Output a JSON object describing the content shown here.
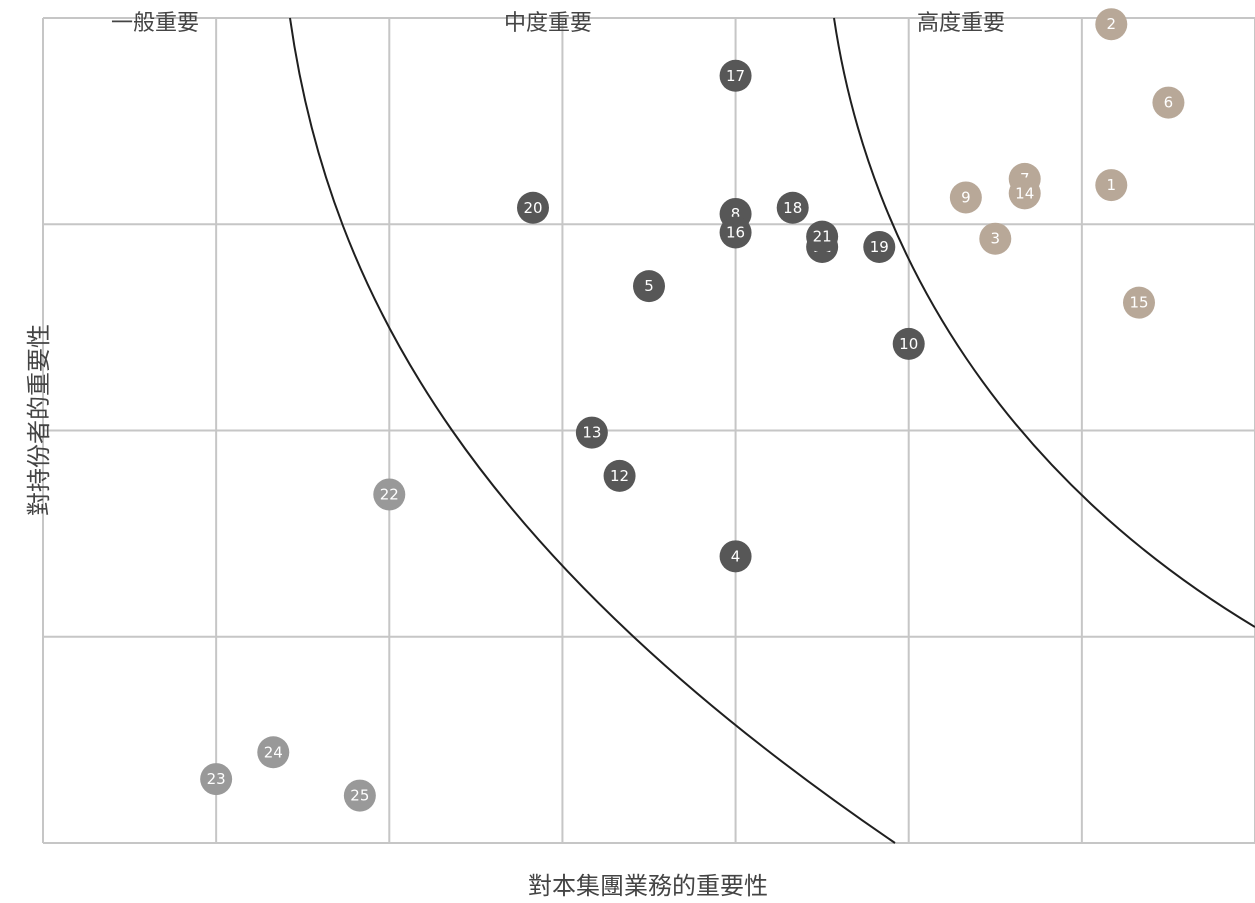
{
  "chart_data": {
    "type": "scatter",
    "title": "",
    "xlabel": "對本集團業務的重要性",
    "ylabel": "對持份者的重要性",
    "xlim": [
      0,
      7
    ],
    "ylim": [
      0,
      4
    ],
    "grid": true,
    "zones": [
      {
        "label": "一般重要",
        "color": "#999999"
      },
      {
        "label": "中度重要",
        "color": "#575757"
      },
      {
        "label": "高度重要",
        "color": "#b8a898"
      }
    ],
    "points": [
      {
        "id": "1",
        "x": 6.17,
        "y": 3.19,
        "zone": 2
      },
      {
        "id": "2",
        "x": 6.17,
        "y": 3.97,
        "zone": 2
      },
      {
        "id": "3",
        "x": 5.5,
        "y": 2.93,
        "zone": 2
      },
      {
        "id": "4",
        "x": 4.0,
        "y": 1.39,
        "zone": 1
      },
      {
        "id": "5",
        "x": 3.5,
        "y": 2.7,
        "zone": 1
      },
      {
        "id": "6",
        "x": 6.5,
        "y": 3.59,
        "zone": 2
      },
      {
        "id": "7",
        "x": 5.67,
        "y": 3.22,
        "zone": 2
      },
      {
        "id": "8",
        "x": 4.0,
        "y": 3.05,
        "zone": 1
      },
      {
        "id": "9",
        "x": 5.33,
        "y": 3.13,
        "zone": 2
      },
      {
        "id": "10",
        "x": 5.0,
        "y": 2.42,
        "zone": 1
      },
      {
        "id": "11",
        "x": 4.5,
        "y": 2.89,
        "zone": 1
      },
      {
        "id": "12",
        "x": 3.33,
        "y": 1.78,
        "zone": 1
      },
      {
        "id": "13",
        "x": 3.17,
        "y": 1.99,
        "zone": 1
      },
      {
        "id": "14",
        "x": 5.67,
        "y": 3.15,
        "zone": 2
      },
      {
        "id": "15",
        "x": 6.33,
        "y": 2.62,
        "zone": 2
      },
      {
        "id": "16",
        "x": 4.0,
        "y": 2.96,
        "zone": 1
      },
      {
        "id": "17",
        "x": 4.0,
        "y": 3.72,
        "zone": 1
      },
      {
        "id": "18",
        "x": 4.33,
        "y": 3.08,
        "zone": 1
      },
      {
        "id": "19",
        "x": 4.83,
        "y": 2.89,
        "zone": 1
      },
      {
        "id": "20",
        "x": 2.83,
        "y": 3.08,
        "zone": 1
      },
      {
        "id": "21",
        "x": 4.5,
        "y": 2.94,
        "zone": 1
      },
      {
        "id": "22",
        "x": 2.0,
        "y": 1.69,
        "zone": 0
      },
      {
        "id": "23",
        "x": 1.0,
        "y": 0.31,
        "zone": 0
      },
      {
        "id": "24",
        "x": 1.33,
        "y": 0.44,
        "zone": 0
      },
      {
        "id": "25",
        "x": 1.83,
        "y": 0.23,
        "zone": 0
      }
    ]
  }
}
